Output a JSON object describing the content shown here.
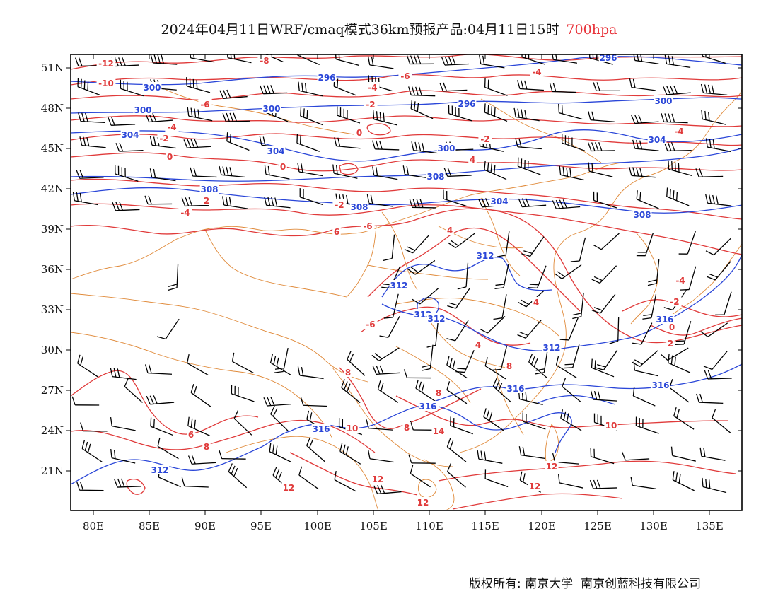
{
  "title": {
    "main": "2024年04月11日WRF/cmaq模式36km预报产品:04月11日15时",
    "level": "700hpa"
  },
  "axes": {
    "lat_labels": [
      "51N",
      "48N",
      "45N",
      "42N",
      "39N",
      "36N",
      "33N",
      "30N",
      "27N",
      "24N",
      "21N"
    ],
    "lon_labels": [
      "80E",
      "85E",
      "90E",
      "95E",
      "100E",
      "105E",
      "110E",
      "115E",
      "120E",
      "125E",
      "130E",
      "135E"
    ]
  },
  "isolines": {
    "temperature_labels": [
      "-12",
      "-10",
      "-8",
      "-6",
      "-6",
      "-4",
      "-4",
      "-4",
      "-2",
      "-2",
      "-2",
      "0",
      "0",
      "0",
      "-4",
      "-2",
      "2",
      "-4",
      "-6",
      "6",
      "4",
      "4",
      "-4",
      "4",
      "-2",
      "0",
      "2",
      "-6",
      "8",
      "4",
      "8",
      "8",
      "6",
      "8",
      "14",
      "10",
      "8",
      "10",
      "12",
      "12",
      "12",
      "12",
      "12"
    ],
    "geopotential_labels": [
      "296",
      "300",
      "300",
      "296",
      "300",
      "296",
      "300",
      "300",
      "304",
      "304",
      "304",
      "308",
      "308",
      "308",
      "304",
      "308",
      "312",
      "312",
      "312",
      "312",
      "312",
      "316",
      "316",
      "316",
      "316",
      "316",
      "312"
    ]
  },
  "copyright": {
    "left": "版权所有: 南京大学",
    "right": "南京创蓝科技有限公司"
  },
  "colors": {
    "temperature": "#e03a3a",
    "geopotential": "#2a46d8",
    "borders": "#e08a3a",
    "wind": "#000000",
    "level_text": "#e8333a"
  }
}
